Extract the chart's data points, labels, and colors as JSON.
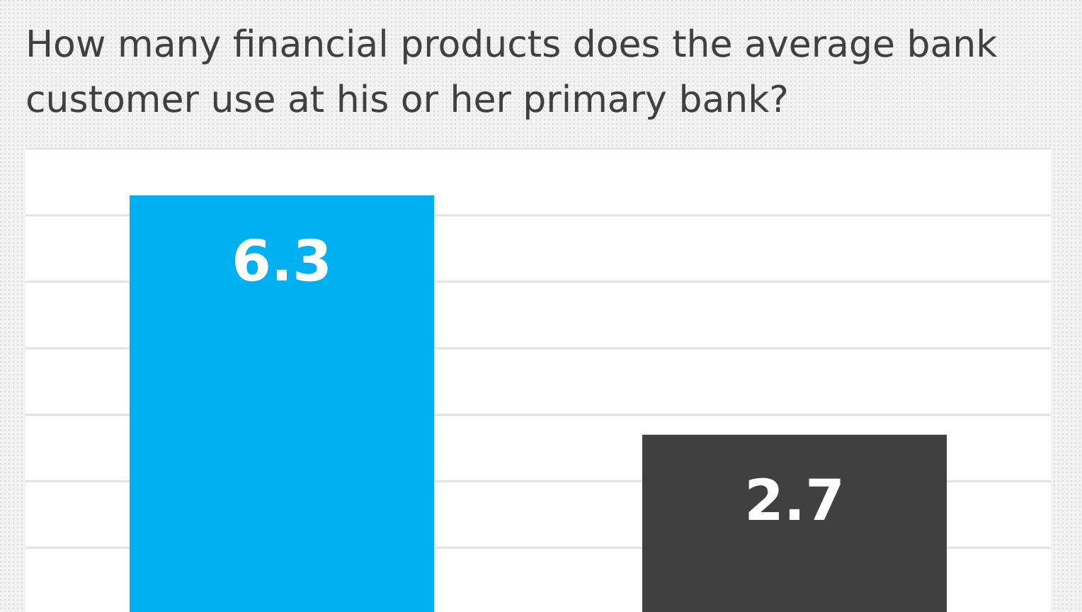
{
  "chart_data": {
    "type": "bar",
    "title": "How many financial products does the average bank customer use at his or her primary bank?",
    "categories": [
      null,
      null
    ],
    "values": [
      6.3,
      2.7
    ],
    "colors": [
      "#00b0f0",
      "#404040"
    ],
    "grid": "y",
    "data_labels": true
  }
}
